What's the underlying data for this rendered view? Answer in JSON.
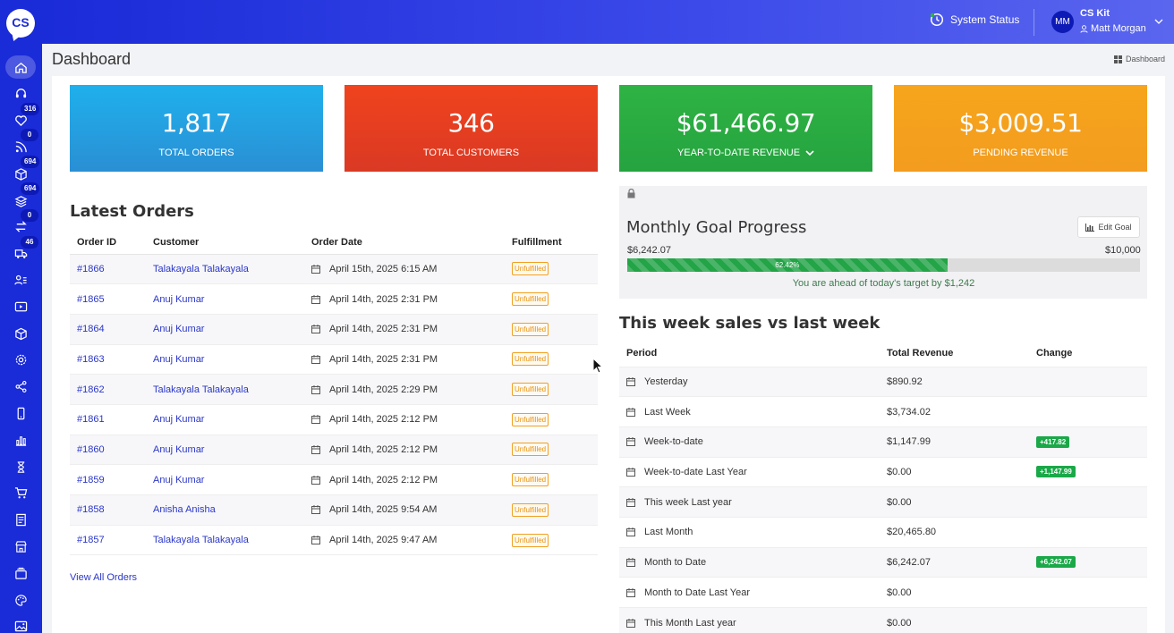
{
  "app": {
    "logo_text": "CS"
  },
  "sidebar": {
    "items": [
      {
        "name": "home",
        "badge": ""
      },
      {
        "name": "headset",
        "badge": ""
      },
      {
        "name": "heart",
        "badge": "316"
      },
      {
        "name": "rss",
        "badge": "0"
      },
      {
        "name": "box",
        "badge": "694"
      },
      {
        "name": "layers",
        "badge": "694"
      },
      {
        "name": "exchange",
        "badge": "0"
      },
      {
        "name": "truck",
        "badge": "46"
      },
      {
        "name": "users-list",
        "badge": ""
      },
      {
        "name": "play",
        "badge": ""
      },
      {
        "name": "cube",
        "badge": ""
      },
      {
        "name": "gear",
        "badge": ""
      },
      {
        "name": "share",
        "badge": ""
      },
      {
        "name": "mobile",
        "badge": ""
      },
      {
        "name": "bar-chart",
        "badge": ""
      },
      {
        "name": "hourglass",
        "badge": ""
      },
      {
        "name": "cart",
        "badge": ""
      },
      {
        "name": "document",
        "badge": ""
      },
      {
        "name": "store",
        "badge": ""
      },
      {
        "name": "cards",
        "badge": ""
      },
      {
        "name": "palette",
        "badge": ""
      },
      {
        "name": "image",
        "badge": ""
      }
    ]
  },
  "topbar": {
    "system_status": "System Status",
    "avatar_initials": "MM",
    "org": "CS Kit",
    "user": "Matt Morgan"
  },
  "page": {
    "title": "Dashboard",
    "breadcrumb": "Dashboard"
  },
  "stats": {
    "total_orders": {
      "value": "1,817",
      "label": "TOTAL ORDERS",
      "color": "#1fb0ec"
    },
    "total_customers": {
      "value": "346",
      "label": "TOTAL CUSTOMERS",
      "color": "#f0431e"
    },
    "ytd_revenue": {
      "value": "$61,466.97",
      "label": "YEAR-TO-DATE REVENUE",
      "color": "#2fb344"
    },
    "pending_revenue": {
      "value": "$3,009.51",
      "label": "PENDING REVENUE",
      "color": "#f6a51c"
    }
  },
  "latest_orders": {
    "title": "Latest Orders",
    "columns": [
      "Order ID",
      "Customer",
      "Order Date",
      "Fulfillment"
    ],
    "rows": [
      {
        "id": "#1866",
        "customer": "Talakayala Talakayala",
        "date": "April 15th, 2025 6:15 AM",
        "status": "Unfulfilled"
      },
      {
        "id": "#1865",
        "customer": "Anuj Kumar",
        "date": "April 14th, 2025 2:31 PM",
        "status": "Unfulfilled"
      },
      {
        "id": "#1864",
        "customer": "Anuj Kumar",
        "date": "April 14th, 2025 2:31 PM",
        "status": "Unfulfilled"
      },
      {
        "id": "#1863",
        "customer": "Anuj Kumar",
        "date": "April 14th, 2025 2:31 PM",
        "status": "Unfulfilled"
      },
      {
        "id": "#1862",
        "customer": "Talakayala Talakayala",
        "date": "April 14th, 2025 2:29 PM",
        "status": "Unfulfilled"
      },
      {
        "id": "#1861",
        "customer": "Anuj Kumar",
        "date": "April 14th, 2025 2:12 PM",
        "status": "Unfulfilled"
      },
      {
        "id": "#1860",
        "customer": "Anuj Kumar",
        "date": "April 14th, 2025 2:12 PM",
        "status": "Unfulfilled"
      },
      {
        "id": "#1859",
        "customer": "Anuj Kumar",
        "date": "April 14th, 2025 2:12 PM",
        "status": "Unfulfilled"
      },
      {
        "id": "#1858",
        "customer": "Anisha Anisha",
        "date": "April 14th, 2025 9:54 AM",
        "status": "Unfulfilled"
      },
      {
        "id": "#1857",
        "customer": "Talakayala Talakayala",
        "date": "April 14th, 2025 9:47 AM",
        "status": "Unfulfilled"
      }
    ],
    "view_all": "View All Orders"
  },
  "goal": {
    "title": "Monthly Goal Progress",
    "edit_label": "Edit Goal",
    "current": "$6,242.07",
    "target": "$10,000",
    "progress": 0.6242,
    "progress_label": "62.42%",
    "note": "You are ahead of today's target by $1,242"
  },
  "weekly": {
    "title": "This week sales vs last week",
    "columns": [
      "Period",
      "Total Revenue",
      "Change"
    ],
    "rows": [
      {
        "period": "Yesterday",
        "revenue": "$890.92",
        "change": ""
      },
      {
        "period": "Last Week",
        "revenue": "$3,734.02",
        "change": ""
      },
      {
        "period": "Week-to-date",
        "revenue": "$1,147.99",
        "change": "+417.82"
      },
      {
        "period": "Week-to-date Last Year",
        "revenue": "$0.00",
        "change": "+1,147.99"
      },
      {
        "period": "This week Last year",
        "revenue": "$0.00",
        "change": ""
      },
      {
        "period": "Last Month",
        "revenue": "$20,465.80",
        "change": ""
      },
      {
        "period": "Month to Date",
        "revenue": "$6,242.07",
        "change": "+6,242.07"
      },
      {
        "period": "Month to Date Last Year",
        "revenue": "$0.00",
        "change": ""
      },
      {
        "period": "This Month Last year",
        "revenue": "$0.00",
        "change": ""
      }
    ]
  }
}
